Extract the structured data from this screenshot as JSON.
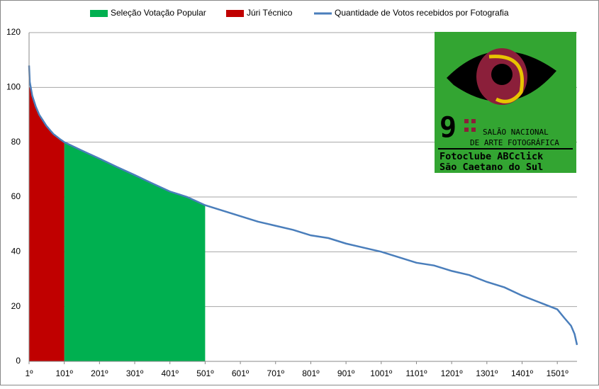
{
  "chart_data": {
    "type": "area",
    "xlim": [
      1,
      1557
    ],
    "ylim": [
      0,
      120
    ],
    "yticks": [
      0,
      20,
      40,
      60,
      80,
      100,
      120
    ],
    "xticks": [
      {
        "value": 1,
        "label": "1º"
      },
      {
        "value": 101,
        "label": "101º"
      },
      {
        "value": 201,
        "label": "201º"
      },
      {
        "value": 301,
        "label": "301º"
      },
      {
        "value": 401,
        "label": "401º"
      },
      {
        "value": 501,
        "label": "501º"
      },
      {
        "value": 601,
        "label": "601º"
      },
      {
        "value": 701,
        "label": "701º"
      },
      {
        "value": 801,
        "label": "801º"
      },
      {
        "value": 901,
        "label": "901º"
      },
      {
        "value": 1001,
        "label": "1001º"
      },
      {
        "value": 1101,
        "label": "1101º"
      },
      {
        "value": 1201,
        "label": "1201º"
      },
      {
        "value": 1301,
        "label": "1301º"
      },
      {
        "value": 1401,
        "label": "1401º"
      },
      {
        "value": 1501,
        "label": "1501º"
      }
    ],
    "grid": true,
    "series": [
      {
        "name": "Seleção Votação Popular",
        "color": "#00b050",
        "kind": "area",
        "x": [
          101,
          150,
          201,
          250,
          301,
          350,
          401,
          450,
          501
        ],
        "values": [
          80,
          77,
          74,
          71,
          68,
          65,
          62,
          60,
          57
        ]
      },
      {
        "name": "Júri Técnico",
        "color": "#c00000",
        "kind": "area",
        "x": [
          1,
          3,
          10,
          20,
          30,
          40,
          50,
          60,
          70,
          80,
          90,
          101
        ],
        "values": [
          100,
          100,
          97,
          93,
          90,
          88,
          86,
          84.5,
          83,
          82,
          81,
          80
        ]
      },
      {
        "name": "Quantidade de Votos recebidos por Fotografia",
        "color": "#4a7ebb",
        "kind": "line",
        "x": [
          1,
          3,
          10,
          20,
          30,
          40,
          50,
          60,
          70,
          80,
          90,
          101,
          150,
          201,
          250,
          301,
          350,
          401,
          450,
          501,
          551,
          601,
          651,
          701,
          751,
          801,
          851,
          901,
          951,
          1001,
          1051,
          1101,
          1151,
          1201,
          1251,
          1301,
          1351,
          1401,
          1451,
          1501,
          1520,
          1540,
          1550,
          1557
        ],
        "values": [
          108,
          102,
          97,
          93,
          90,
          88,
          86,
          84.5,
          83,
          82,
          81,
          80,
          77,
          74,
          71,
          68,
          65,
          62,
          60,
          57,
          55,
          53,
          51,
          49.5,
          48,
          46,
          45,
          43,
          41.5,
          40,
          38,
          36,
          35,
          33,
          31.5,
          29,
          27,
          24,
          21.5,
          19,
          16,
          13,
          10,
          6
        ]
      }
    ]
  },
  "logo": {
    "number": "9",
    "line1": "SALÃO NACIONAL",
    "line2": "DE ARTE FOTOGRÁFICA",
    "line3": "Fotoclube ABCclick",
    "line4": "São Caetano do Sul"
  }
}
